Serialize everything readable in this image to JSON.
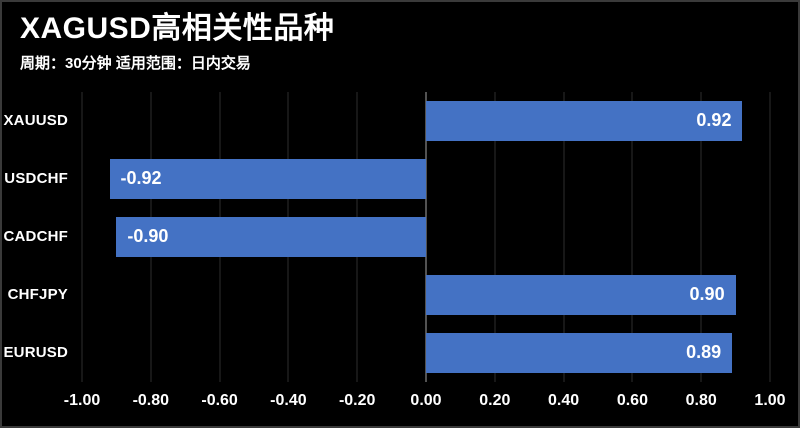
{
  "header": {
    "title": "XAGUSD高相关性品种",
    "subtitle": "周期：30分钟 适用范围：日内交易"
  },
  "chart_data": {
    "type": "bar",
    "orientation": "horizontal",
    "title": "XAGUSD高相关性品种",
    "subtitle": "周期：30分钟 适用范围：日内交易",
    "categories": [
      "XAUUSD",
      "USDCHF",
      "CADCHF",
      "CHFJPY",
      "EURUSD"
    ],
    "values": [
      0.92,
      -0.92,
      -0.9,
      0.9,
      0.89
    ],
    "values_display": [
      "0.92",
      "-0.92",
      "-0.90",
      "0.90",
      "0.89"
    ],
    "xlim": [
      -1.0,
      1.0
    ],
    "x_ticks": [
      -1.0,
      -0.8,
      -0.6,
      -0.4,
      -0.2,
      0,
      0.2,
      0.4,
      0.6,
      0.8,
      1.0
    ],
    "x_tick_labels": [
      "-1.00",
      "-0.80",
      "-0.60",
      "-0.40",
      "-0.20",
      "0.00",
      "0.20",
      "0.40",
      "0.60",
      "0.80",
      "1.00"
    ],
    "grid": true,
    "legend": false,
    "colors": {
      "background": "#000000",
      "bar": "#4472C4",
      "gridline": "#2e2e2e",
      "zero_line": "#525252",
      "text": "#ffffff",
      "frame_border": "#3a3a3a"
    }
  }
}
